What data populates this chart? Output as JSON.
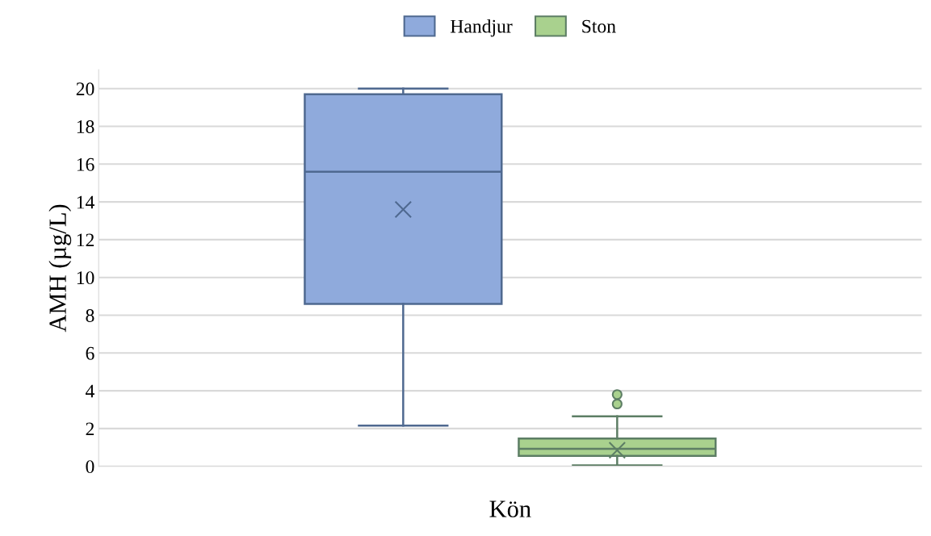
{
  "chart_data": {
    "type": "box",
    "xlabel": "Kön",
    "ylabel": "AMH (µg/L)",
    "categories": [
      null
    ],
    "series": [
      {
        "name": "Handjur",
        "color": "#8faadc",
        "boxes": [
          {
            "low": 2.15,
            "q1": 8.6,
            "median": 15.6,
            "q3": 19.7,
            "high": 20,
            "mean": 13.6
          }
        ]
      },
      {
        "name": "Ston",
        "color": "#a9d18e",
        "boxes": [
          {
            "low": 0.05,
            "q1": 0.55,
            "median": 0.93,
            "q3": 1.47,
            "high": 2.65,
            "mean": 0.85,
            "outliers": [
              3.3,
              3.8
            ]
          }
        ]
      }
    ],
    "ylim": [
      0,
      21
    ],
    "yticks": [
      0,
      2,
      4,
      6,
      8,
      10,
      12,
      14,
      16,
      18,
      20
    ],
    "grid": "y",
    "legend": "top",
    "tick_labels": "y"
  }
}
